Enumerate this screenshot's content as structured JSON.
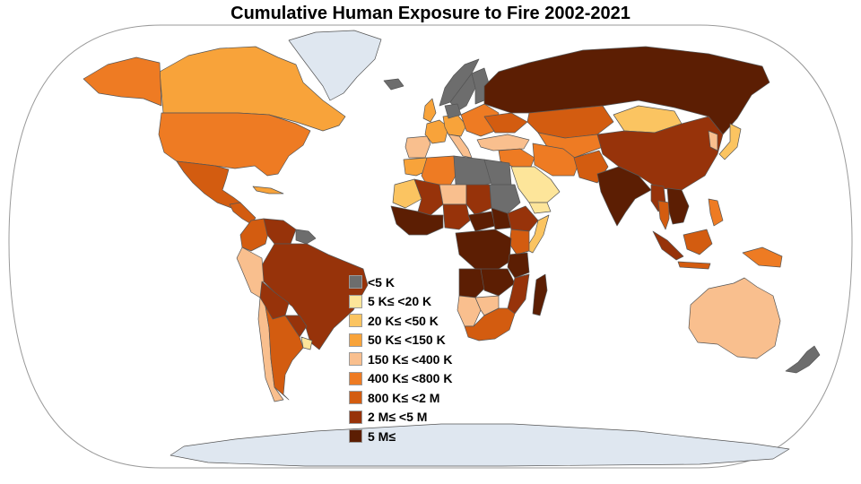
{
  "title": "Cumulative Human Exposure to Fire 2002-2021",
  "colors": {
    "ocean": "#ffffff",
    "ice": "#dfe7f0",
    "border": "#555555",
    "frame": "#9a9a9a"
  },
  "legend": {
    "items": [
      {
        "label": "<5 K",
        "color": "#6d6d6d"
      },
      {
        "label": "5 K≤ <20 K",
        "color": "#fde59a"
      },
      {
        "label": "20 K≤ <50 K",
        "color": "#fbc461"
      },
      {
        "label": "50 K≤ <150 K",
        "color": "#f8a33a"
      },
      {
        "label": "150 K≤ <400 K",
        "color": "#f9bf8e"
      },
      {
        "label": "400 K≤ <800 K",
        "color": "#ee7b23"
      },
      {
        "label": "800 K≤ <2 M",
        "color": "#d35c10"
      },
      {
        "label": "2 M≤ <5 M",
        "color": "#97330a"
      },
      {
        "label": "5 M≤",
        "color": "#5c1e03"
      }
    ]
  },
  "regions": [
    {
      "name": "Greenland",
      "class": "ice"
    },
    {
      "name": "Antarctica",
      "class": "ice"
    },
    {
      "name": "Canada",
      "class": 3
    },
    {
      "name": "Alaska",
      "class": 5
    },
    {
      "name": "United States",
      "class": 5
    },
    {
      "name": "Mexico",
      "class": 6
    },
    {
      "name": "Central America",
      "class": 6
    },
    {
      "name": "Cuba",
      "class": 3
    },
    {
      "name": "Colombia",
      "class": 6
    },
    {
      "name": "Venezuela",
      "class": 7
    },
    {
      "name": "Guianas",
      "class": 0
    },
    {
      "name": "Brazil",
      "class": 7
    },
    {
      "name": "Peru",
      "class": 4
    },
    {
      "name": "Bolivia",
      "class": 7
    },
    {
      "name": "Paraguay",
      "class": 7
    },
    {
      "name": "Uruguay",
      "class": 1
    },
    {
      "name": "Chile",
      "class": 4
    },
    {
      "name": "Argentina",
      "class": 6
    },
    {
      "name": "Iceland",
      "class": 0
    },
    {
      "name": "Norway",
      "class": 0
    },
    {
      "name": "Sweden",
      "class": 0
    },
    {
      "name": "Finland",
      "class": 0
    },
    {
      "name": "United Kingdom",
      "class": 3
    },
    {
      "name": "France",
      "class": 3
    },
    {
      "name": "Iberia",
      "class": 4
    },
    {
      "name": "Central Europe",
      "class": 3
    },
    {
      "name": "Germany",
      "class": 0
    },
    {
      "name": "Italy",
      "class": 4
    },
    {
      "name": "Eastern Europe",
      "class": 5
    },
    {
      "name": "Ukraine",
      "class": 6
    },
    {
      "name": "Turkey",
      "class": 4
    },
    {
      "name": "Russia",
      "class": 8
    },
    {
      "name": "Kazakhstan",
      "class": 6
    },
    {
      "name": "Central Asia",
      "class": 5
    },
    {
      "name": "Mongolia",
      "class": 2
    },
    {
      "name": "China",
      "class": 7
    },
    {
      "name": "Korea",
      "class": 4
    },
    {
      "name": "Japan",
      "class": 2
    },
    {
      "name": "Middle East",
      "class": 5
    },
    {
      "name": "Iran",
      "class": 5
    },
    {
      "name": "Saudi Arabia",
      "class": 1
    },
    {
      "name": "Yemen",
      "class": 1
    },
    {
      "name": "Afghanistan Pakistan",
      "class": 6
    },
    {
      "name": "India",
      "class": 8
    },
    {
      "name": "Myanmar",
      "class": 7
    },
    {
      "name": "Thailand",
      "class": 6
    },
    {
      "name": "Indochina",
      "class": 8
    },
    {
      "name": "Philippines",
      "class": 5
    },
    {
      "name": "Sumatra",
      "class": 7
    },
    {
      "name": "Borneo",
      "class": 6
    },
    {
      "name": "Java",
      "class": 6
    },
    {
      "name": "New Guinea",
      "class": 5
    },
    {
      "name": "Australia",
      "class": 4
    },
    {
      "name": "New Zealand",
      "class": 0
    },
    {
      "name": "Morocco",
      "class": 3
    },
    {
      "name": "Algeria",
      "class": 5
    },
    {
      "name": "Libya",
      "class": 0
    },
    {
      "name": "Egypt",
      "class": 0
    },
    {
      "name": "Mauritania",
      "class": 2
    },
    {
      "name": "Mali",
      "class": 7
    },
    {
      "name": "Niger",
      "class": 4
    },
    {
      "name": "Chad",
      "class": 7
    },
    {
      "name": "Sudan",
      "class": 0
    },
    {
      "name": "West Africa",
      "class": 8
    },
    {
      "name": "Nigeria",
      "class": 7
    },
    {
      "name": "Central African Republic",
      "class": 8
    },
    {
      "name": "South Sudan",
      "class": 8
    },
    {
      "name": "Ethiopia",
      "class": 7
    },
    {
      "name": "Somalia",
      "class": 2
    },
    {
      "name": "Kenya",
      "class": 6
    },
    {
      "name": "Congo Basin",
      "class": 8
    },
    {
      "name": "Tanzania",
      "class": 8
    },
    {
      "name": "Angola",
      "class": 8
    },
    {
      "name": "Zambia",
      "class": 8
    },
    {
      "name": "Mozambique",
      "class": 7
    },
    {
      "name": "Namibia",
      "class": 4
    },
    {
      "name": "Botswana",
      "class": 4
    },
    {
      "name": "South Africa",
      "class": 6
    },
    {
      "name": "Madagascar",
      "class": 8
    }
  ]
}
